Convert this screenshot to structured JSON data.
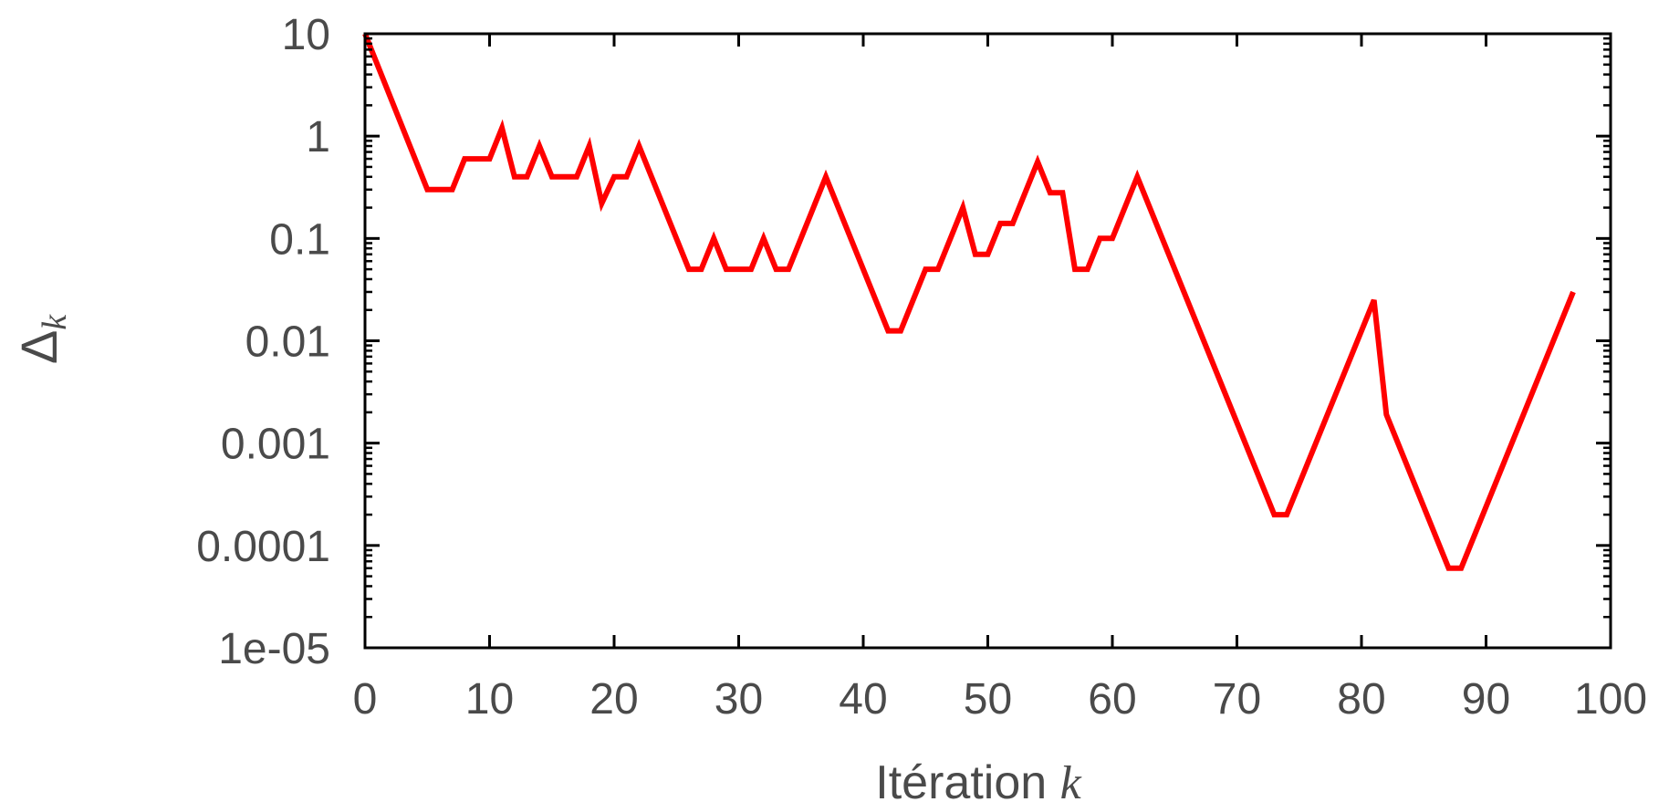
{
  "chart_data": {
    "type": "line",
    "xlabel_text": "Itération ",
    "xlabel_var": "k",
    "ylabel_symbol": "Δ",
    "ylabel_sub": "k",
    "yscale": "log",
    "xlim": [
      0,
      100
    ],
    "ylim": [
      1e-05,
      10
    ],
    "x_ticks": [
      "0",
      "10",
      "20",
      "30",
      "40",
      "50",
      "60",
      "70",
      "80",
      "90",
      "100"
    ],
    "y_ticks": [
      "10",
      "1",
      "0.1",
      "0.01",
      "0.001",
      "0.0001",
      "1e-05"
    ],
    "grid": false,
    "line_color": "#ff0000",
    "series": [
      {
        "x": [
          0,
          5,
          7,
          8,
          10,
          11,
          12,
          13,
          14,
          15,
          17,
          18,
          19,
          20,
          21,
          22,
          26,
          27,
          28,
          29,
          31,
          32,
          33,
          34,
          37,
          42,
          43,
          45,
          46,
          48,
          49,
          50,
          51,
          52,
          54,
          55,
          56,
          57,
          58,
          59,
          60,
          62,
          73,
          74,
          81,
          82,
          87,
          88,
          97
        ],
        "y": [
          10,
          0.3,
          0.3,
          0.6,
          0.6,
          1.2,
          0.4,
          0.4,
          0.8,
          0.4,
          0.4,
          0.8,
          0.22,
          0.4,
          0.4,
          0.8,
          0.05,
          0.05,
          0.1,
          0.05,
          0.05,
          0.1,
          0.05,
          0.05,
          0.4,
          0.0125,
          0.0125,
          0.05,
          0.05,
          0.2,
          0.07,
          0.07,
          0.14,
          0.14,
          0.56,
          0.28,
          0.28,
          0.05,
          0.05,
          0.1,
          0.1,
          0.4,
          0.0002,
          0.0002,
          0.025,
          0.0019,
          6e-05,
          6e-05,
          0.03
        ]
      }
    ]
  }
}
